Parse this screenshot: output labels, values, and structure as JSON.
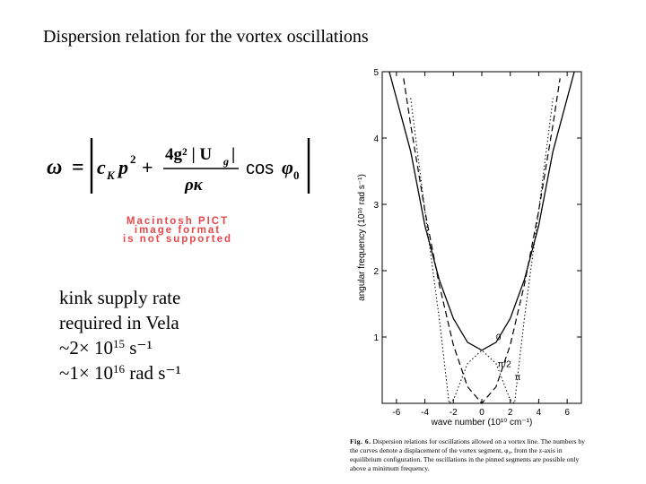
{
  "slide": {
    "title": "Dispersion relation for the vortex oscillations",
    "pict_placeholder": [
      "Macintosh PICT",
      "image format",
      "is not supported"
    ],
    "notes": {
      "line1": "kink supply rate",
      "line2": "required in Vela",
      "line3_base": "~2× 10",
      "line3_exp": "15",
      "line3_unit": " s⁻¹",
      "line4_base": "~1× 10",
      "line4_exp": "16",
      "line4_unit": " rad s⁻¹"
    }
  },
  "formula": {
    "omega": "ω",
    "eq": "=",
    "c": "c",
    "c_sub": "K",
    "p": "p",
    "p_exp": "2",
    "plus": "+",
    "num": "4g² | U",
    "num_sub": "g",
    "num_bar": "|",
    "den": "ρκ",
    "cos": "cos",
    "phi": "φ",
    "phi_sub": "0"
  },
  "chart_data": {
    "type": "line",
    "xlabel": "wave number (10¹⁰ cm⁻¹)",
    "ylabel": "angular frequency (10¹⁶ rad s⁻¹)",
    "xlim": [
      -7,
      7
    ],
    "ylim": [
      0,
      5
    ],
    "xticks": [
      "-6",
      "-4",
      "-2",
      "0",
      "2",
      "4",
      "6"
    ],
    "yticks": [
      "1",
      "2",
      "3",
      "4",
      "5"
    ],
    "series": [
      {
        "name": "0",
        "style": "solid",
        "x": [
          -6.5,
          -5,
          -4,
          -3,
          -2,
          -1,
          0,
          1,
          2,
          3,
          4,
          5,
          6.5
        ],
        "y": [
          5.0,
          3.8,
          2.68,
          1.87,
          1.28,
          0.92,
          0.8,
          0.92,
          1.28,
          1.87,
          2.68,
          3.8,
          5.0
        ]
      },
      {
        "name": "π/2",
        "style": "dashed",
        "x": [
          -5.5,
          -5,
          -4,
          -3,
          -2,
          -1,
          0,
          1,
          2,
          3,
          4,
          5,
          5.5
        ],
        "y": [
          4.9,
          4.2,
          2.9,
          1.8,
          0.88,
          0.25,
          0.0,
          0.25,
          0.88,
          1.8,
          2.9,
          4.2,
          4.9
        ]
      },
      {
        "name": "π",
        "style": "dotted",
        "x": [
          -5,
          -4,
          -3,
          -2.3,
          -2,
          -1,
          0,
          1,
          2,
          2.3,
          3,
          4,
          5
        ],
        "y": [
          4.6,
          2.9,
          1.3,
          0.0,
          0.05,
          0.6,
          0.8,
          0.6,
          0.05,
          0.0,
          1.3,
          2.9,
          4.6
        ]
      }
    ],
    "annotations": [
      "0",
      "π/2",
      "π"
    ]
  },
  "caption": {
    "label": "Fig. 6.",
    "text": "Dispersion relations for oscillations allowed on a vortex line. The numbers by the curves denote a displacement of the vortex segment, φ₀, from the z-axis in equilibrium configuration. The oscillations in the pinned segments are possible only above a minimum frequency."
  }
}
